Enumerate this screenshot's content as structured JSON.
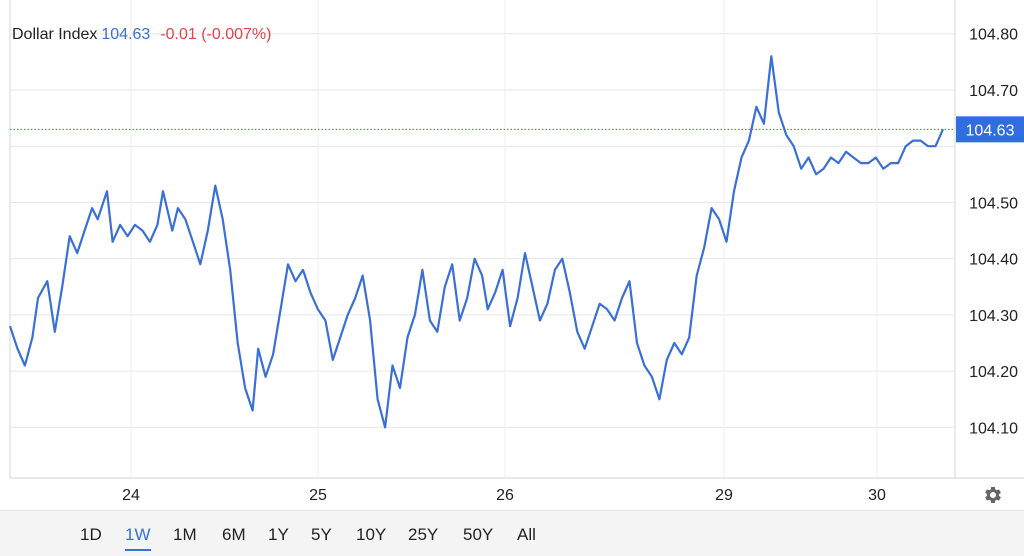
{
  "legend": {
    "name": "Dollar Index",
    "last": "104.63",
    "change": "-0.01 (-0.007%)"
  },
  "range_buttons": [
    {
      "label": "1D",
      "active": false
    },
    {
      "label": "1W",
      "active": true
    },
    {
      "label": "1M",
      "active": false
    },
    {
      "label": "6M",
      "active": false
    },
    {
      "label": "1Y",
      "active": false
    },
    {
      "label": "5Y",
      "active": false
    },
    {
      "label": "10Y",
      "active": false
    },
    {
      "label": "25Y",
      "active": false
    },
    {
      "label": "50Y",
      "active": false
    },
    {
      "label": "All",
      "active": false
    }
  ],
  "icons": {
    "settings": "gear-icon"
  },
  "colors": {
    "line": "#3a6fd8",
    "price_tag": "#2f6de0",
    "change": "#e0454a",
    "grid": "#e6e6e6"
  },
  "chart_data": {
    "type": "line",
    "x_ticks": [
      "24",
      "25",
      "26",
      "29",
      "30"
    ],
    "y_ticks": [
      104.1,
      104.2,
      104.3,
      104.4,
      104.5,
      104.6,
      104.7,
      104.8
    ],
    "y_tick_labels": [
      "104.10",
      "104.20",
      "104.30",
      "104.40",
      "104.50",
      "104.70",
      "104.80"
    ],
    "ylim": [
      104.01,
      104.86
    ],
    "last_value": 104.63,
    "last_label": "104.63",
    "grid": true,
    "x": [
      23.0,
      23.04,
      23.08,
      23.12,
      23.15,
      23.2,
      23.24,
      23.28,
      23.32,
      23.36,
      23.4,
      23.44,
      23.47,
      23.52,
      23.55,
      23.59,
      23.63,
      23.67,
      23.71,
      23.75,
      23.79,
      23.82,
      23.87,
      23.9,
      23.94,
      23.98,
      24.02,
      24.06,
      24.1,
      24.14,
      24.18,
      24.22,
      24.26,
      24.3,
      24.33,
      24.37,
      24.41,
      24.45,
      24.49,
      24.53,
      24.57,
      24.61,
      24.65,
      24.69,
      24.73,
      24.77,
      24.81,
      24.85,
      24.89,
      24.93,
      24.97,
      25.01,
      25.05,
      25.09,
      25.13,
      25.17,
      25.21,
      25.25,
      25.29,
      25.33,
      25.37,
      25.41,
      25.45,
      25.49,
      25.53,
      25.56,
      25.6,
      25.64,
      25.68,
      25.72,
      25.76,
      25.8,
      25.84,
      25.88,
      25.92,
      25.96,
      26.0,
      26.04,
      26.08,
      26.12,
      26.16,
      26.2,
      26.24,
      26.28,
      26.32,
      26.36,
      26.4,
      26.44,
      26.48,
      26.52,
      26.56,
      26.6,
      26.64,
      26.68,
      26.72,
      26.76,
      26.8,
      26.84,
      26.88,
      26.92,
      26.96,
      27.0,
      27.04,
      27.08,
      27.12,
      27.16,
      27.2,
      27.24,
      27.28,
      27.32,
      27.36,
      27.4,
      27.44,
      27.48,
      27.52,
      27.56,
      27.6,
      27.64,
      27.68,
      27.72,
      27.76,
      27.8,
      27.84,
      27.88,
      27.92,
      27.96,
      28.0
    ],
    "values": [
      104.28,
      104.24,
      104.21,
      104.26,
      104.33,
      104.36,
      104.27,
      104.35,
      104.44,
      104.41,
      104.45,
      104.49,
      104.47,
      104.52,
      104.43,
      104.46,
      104.44,
      104.46,
      104.45,
      104.43,
      104.46,
      104.52,
      104.45,
      104.49,
      104.47,
      104.43,
      104.39,
      104.45,
      104.53,
      104.47,
      104.38,
      104.25,
      104.17,
      104.13,
      104.24,
      104.19,
      104.23,
      104.31,
      104.39,
      104.36,
      104.38,
      104.34,
      104.31,
      104.29,
      104.22,
      104.26,
      104.3,
      104.33,
      104.37,
      104.29,
      104.15,
      104.1,
      104.21,
      104.17,
      104.26,
      104.3,
      104.38,
      104.29,
      104.27,
      104.35,
      104.39,
      104.29,
      104.33,
      104.4,
      104.37,
      104.31,
      104.34,
      104.38,
      104.28,
      104.33,
      104.41,
      104.35,
      104.29,
      104.32,
      104.38,
      104.4,
      104.34,
      104.27,
      104.24,
      104.28,
      104.32,
      104.31,
      104.29,
      104.33,
      104.36,
      104.25,
      104.21,
      104.19,
      104.15,
      104.22,
      104.25,
      104.23,
      104.26,
      104.37,
      104.42,
      104.49,
      104.47,
      104.43,
      104.52,
      104.58,
      104.61,
      104.67,
      104.64,
      104.76,
      104.66,
      104.62,
      104.6,
      104.56,
      104.58,
      104.55,
      104.56,
      104.58,
      104.57,
      104.59,
      104.58,
      104.57,
      104.57,
      104.58,
      104.56,
      104.57,
      104.57,
      104.6,
      104.61,
      104.61,
      104.6,
      104.6,
      104.63
    ]
  }
}
